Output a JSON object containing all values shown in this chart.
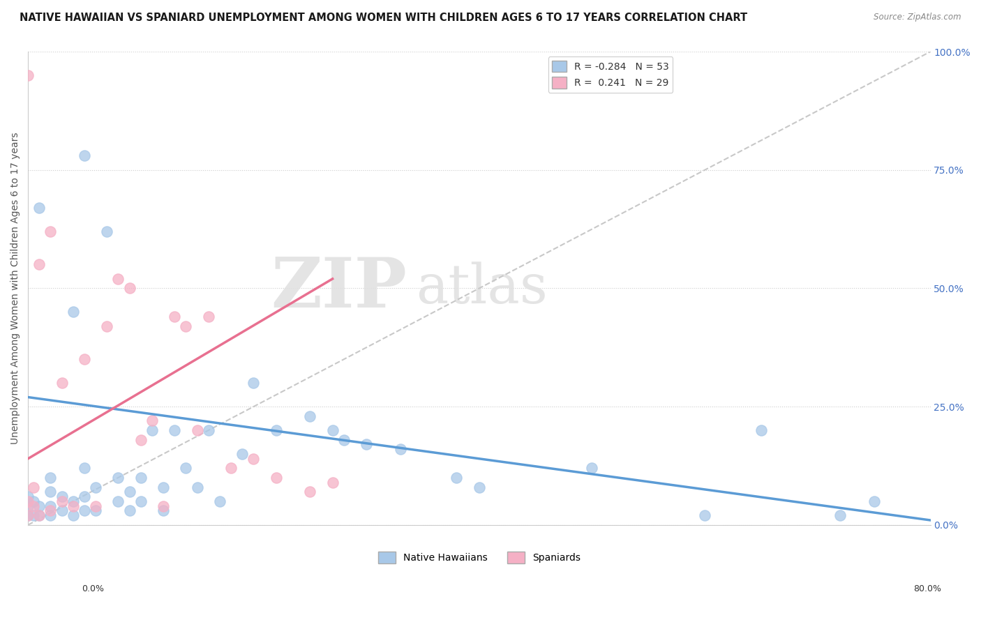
{
  "title": "NATIVE HAWAIIAN VS SPANIARD UNEMPLOYMENT AMONG WOMEN WITH CHILDREN AGES 6 TO 17 YEARS CORRELATION CHART",
  "source": "Source: ZipAtlas.com",
  "ylabel": "Unemployment Among Women with Children Ages 6 to 17 years",
  "legend_labels": [
    "Native Hawaiians",
    "Spaniards"
  ],
  "legend_R": [
    -0.284,
    0.241
  ],
  "legend_N": [
    53,
    29
  ],
  "hawaiian_scatter_color": "#a8c8e8",
  "spaniard_scatter_color": "#f5b0c5",
  "trend_hawaiian_color": "#5b9bd5",
  "trend_spaniard_color": "#e87090",
  "trend_diagonal_color": "#c8c8c8",
  "xlim": [
    0.0,
    0.8
  ],
  "ylim": [
    0.0,
    1.0
  ],
  "right_yticks": [
    0.0,
    0.25,
    0.5,
    0.75,
    1.0
  ],
  "right_ytick_labels": [
    "0.0%",
    "25.0%",
    "50.0%",
    "75.0%",
    "100.0%"
  ],
  "background_color": "#ffffff",
  "hawaiian_trend_start_y": 0.27,
  "hawaiian_trend_end_y": 0.01,
  "spaniard_trend_start_y": 0.14,
  "spaniard_trend_end_y": 0.52,
  "spaniard_trend_end_x": 0.27,
  "hawaiian_x": [
    0.0,
    0.0,
    0.0,
    0.005,
    0.005,
    0.01,
    0.01,
    0.01,
    0.02,
    0.02,
    0.02,
    0.02,
    0.03,
    0.03,
    0.04,
    0.04,
    0.04,
    0.05,
    0.05,
    0.05,
    0.05,
    0.06,
    0.06,
    0.07,
    0.08,
    0.08,
    0.09,
    0.09,
    0.1,
    0.1,
    0.11,
    0.12,
    0.12,
    0.13,
    0.14,
    0.15,
    0.16,
    0.17,
    0.19,
    0.2,
    0.22,
    0.25,
    0.27,
    0.28,
    0.3,
    0.33,
    0.38,
    0.4,
    0.5,
    0.6,
    0.65,
    0.72,
    0.75
  ],
  "hawaiian_y": [
    0.02,
    0.04,
    0.06,
    0.02,
    0.05,
    0.02,
    0.04,
    0.67,
    0.02,
    0.04,
    0.07,
    0.1,
    0.03,
    0.06,
    0.02,
    0.05,
    0.45,
    0.03,
    0.06,
    0.12,
    0.78,
    0.03,
    0.08,
    0.62,
    0.05,
    0.1,
    0.03,
    0.07,
    0.05,
    0.1,
    0.2,
    0.03,
    0.08,
    0.2,
    0.12,
    0.08,
    0.2,
    0.05,
    0.15,
    0.3,
    0.2,
    0.23,
    0.2,
    0.18,
    0.17,
    0.16,
    0.1,
    0.08,
    0.12,
    0.02,
    0.2,
    0.02,
    0.05
  ],
  "spaniard_x": [
    0.0,
    0.0,
    0.0,
    0.005,
    0.005,
    0.01,
    0.01,
    0.02,
    0.02,
    0.03,
    0.03,
    0.04,
    0.05,
    0.06,
    0.07,
    0.08,
    0.09,
    0.1,
    0.11,
    0.12,
    0.13,
    0.14,
    0.15,
    0.16,
    0.18,
    0.2,
    0.22,
    0.25,
    0.27
  ],
  "spaniard_y": [
    0.02,
    0.05,
    0.95,
    0.04,
    0.08,
    0.02,
    0.55,
    0.03,
    0.62,
    0.05,
    0.3,
    0.04,
    0.35,
    0.04,
    0.42,
    0.52,
    0.5,
    0.18,
    0.22,
    0.04,
    0.44,
    0.42,
    0.2,
    0.44,
    0.12,
    0.14,
    0.1,
    0.07,
    0.09
  ]
}
